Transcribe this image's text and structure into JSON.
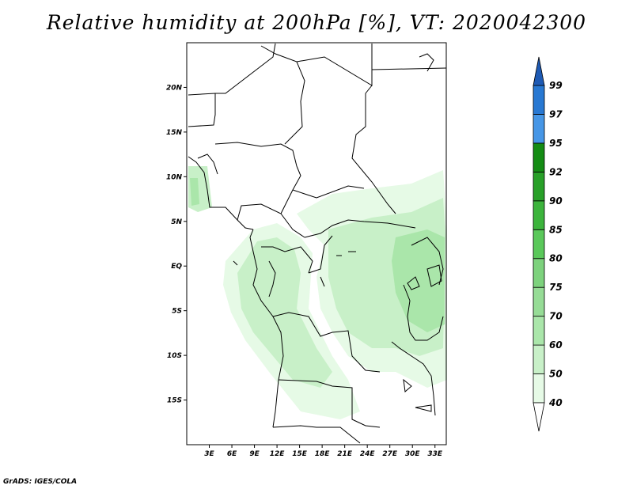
{
  "title": "Relative humidity at 200hPa [%], VT: 2020042300",
  "footer": "GrADS: IGES/COLA",
  "map": {
    "lon_range": [
      0,
      34.5
    ],
    "lat_range": [
      -20,
      25
    ],
    "lon_ticks": [
      {
        "value": 3,
        "label": "3E"
      },
      {
        "value": 6,
        "label": "6E"
      },
      {
        "value": 9,
        "label": "9E"
      },
      {
        "value": 12,
        "label": "12E"
      },
      {
        "value": 15,
        "label": "15E"
      },
      {
        "value": 18,
        "label": "18E"
      },
      {
        "value": 21,
        "label": "21E"
      },
      {
        "value": 24,
        "label": "24E"
      },
      {
        "value": 27,
        "label": "27E"
      },
      {
        "value": 30,
        "label": "30E"
      },
      {
        "value": 33,
        "label": "33E"
      }
    ],
    "lat_ticks": [
      {
        "value": 20,
        "label": "20N"
      },
      {
        "value": 15,
        "label": "15N"
      },
      {
        "value": 10,
        "label": "10N"
      },
      {
        "value": 5,
        "label": "5N"
      },
      {
        "value": 0,
        "label": "EQ"
      },
      {
        "value": -5,
        "label": "5S"
      },
      {
        "value": -10,
        "label": "10S"
      },
      {
        "value": -15,
        "label": "15S"
      }
    ]
  },
  "colorbar": {
    "levels": [
      "40",
      "50",
      "60",
      "70",
      "75",
      "80",
      "85",
      "90",
      "92",
      "95",
      "97",
      "99"
    ],
    "colors": [
      "#e6fae6",
      "#c8f0c8",
      "#aae6aa",
      "#96dc96",
      "#7dd27d",
      "#5ac85a",
      "#3cb43c",
      "#28a028",
      "#148c14",
      "#4696e6",
      "#2878d2",
      "#1e5ab4"
    ]
  }
}
